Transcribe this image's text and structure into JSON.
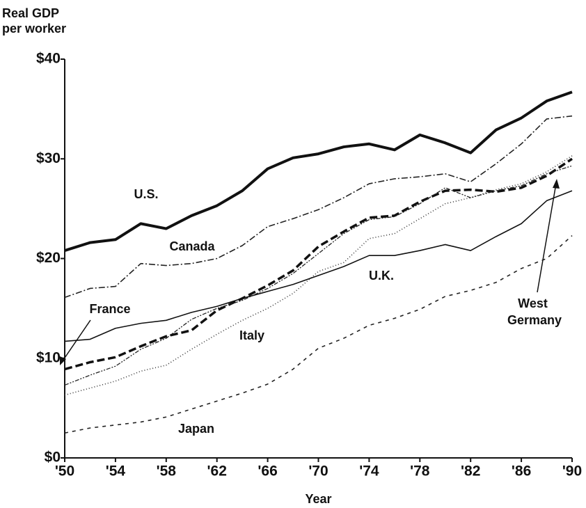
{
  "chart_data": {
    "type": "line",
    "y_label": "Real GDP per worker",
    "x_label": "Year",
    "x": [
      1950,
      1952,
      1954,
      1956,
      1958,
      1960,
      1962,
      1964,
      1966,
      1968,
      1970,
      1972,
      1974,
      1976,
      1978,
      1980,
      1982,
      1984,
      1986,
      1988,
      1990
    ],
    "series": [
      {
        "name": "U.S.",
        "color": "#111111",
        "values": [
          20.8,
          21.6,
          21.9,
          23.5,
          23.0,
          24.3,
          25.3,
          26.8,
          29.0,
          30.1,
          30.5,
          31.2,
          31.5,
          30.9,
          32.4,
          31.6,
          30.6,
          32.9,
          34.1,
          35.8,
          36.7
        ]
      },
      {
        "name": "Canada",
        "color": "#222222",
        "values": [
          16.1,
          17.0,
          17.2,
          19.5,
          19.3,
          19.5,
          20.0,
          21.3,
          23.2,
          24.0,
          24.9,
          26.1,
          27.5,
          28.0,
          28.2,
          28.5,
          27.7,
          29.5,
          31.5,
          34.0,
          34.3
        ]
      },
      {
        "name": "France",
        "color": "#111111",
        "values": [
          8.9,
          9.6,
          10.1,
          11.2,
          12.2,
          12.8,
          14.8,
          16.0,
          17.3,
          18.8,
          21.2,
          22.7,
          24.1,
          24.3,
          25.7,
          26.8,
          26.9,
          26.7,
          27.1,
          28.3,
          30.0
        ]
      },
      {
        "name": "Italy",
        "color": "#333333",
        "values": [
          6.3,
          7.0,
          7.7,
          8.7,
          9.3,
          10.9,
          12.4,
          13.8,
          15.0,
          16.5,
          18.7,
          19.6,
          22.0,
          22.5,
          24.0,
          25.5,
          26.1,
          26.9,
          27.5,
          28.7,
          30.3
        ]
      },
      {
        "name": "U.K.",
        "color": "#111111",
        "values": [
          11.7,
          11.9,
          13.0,
          13.5,
          13.8,
          14.6,
          15.2,
          16.0,
          16.7,
          17.4,
          18.3,
          19.2,
          20.3,
          20.3,
          20.8,
          21.4,
          20.8,
          22.2,
          23.5,
          25.8,
          26.8
        ]
      },
      {
        "name": "West Germany",
        "color": "#222222",
        "values": [
          7.3,
          8.3,
          9.2,
          10.9,
          12.0,
          13.9,
          15.0,
          15.8,
          17.0,
          18.5,
          20.5,
          22.5,
          23.9,
          24.2,
          25.5,
          27.1,
          26.1,
          26.8,
          27.3,
          28.5,
          29.3
        ]
      },
      {
        "name": "Japan",
        "color": "#222222",
        "values": [
          2.5,
          3.0,
          3.3,
          3.6,
          4.1,
          4.9,
          5.7,
          6.5,
          7.4,
          8.9,
          11.0,
          12.0,
          13.3,
          14.0,
          14.9,
          16.2,
          16.8,
          17.6,
          19.0,
          20.0,
          22.3
        ]
      }
    ],
    "xlim": [
      1950,
      1990
    ],
    "xticks": [
      {
        "value": 1950,
        "label": "'50"
      },
      {
        "value": 1954,
        "label": "'54"
      },
      {
        "value": 1958,
        "label": "'58"
      },
      {
        "value": 1962,
        "label": "'62"
      },
      {
        "value": 1966,
        "label": "'66"
      },
      {
        "value": 1970,
        "label": "'70"
      },
      {
        "value": 1974,
        "label": "'74"
      },
      {
        "value": 1978,
        "label": "'78"
      },
      {
        "value": 1982,
        "label": "'82"
      },
      {
        "value": 1986,
        "label": "'86"
      },
      {
        "value": 1990,
        "label": "'90"
      }
    ],
    "ylim": [
      0,
      40
    ],
    "yticks": [
      {
        "value": 0,
        "label": "$0"
      },
      {
        "value": 10,
        "label": "$10"
      },
      {
        "value": 20,
        "label": "$20"
      },
      {
        "value": 30,
        "label": "$30"
      },
      {
        "value": 40,
        "label": "$40"
      }
    ],
    "grid": false
  }
}
